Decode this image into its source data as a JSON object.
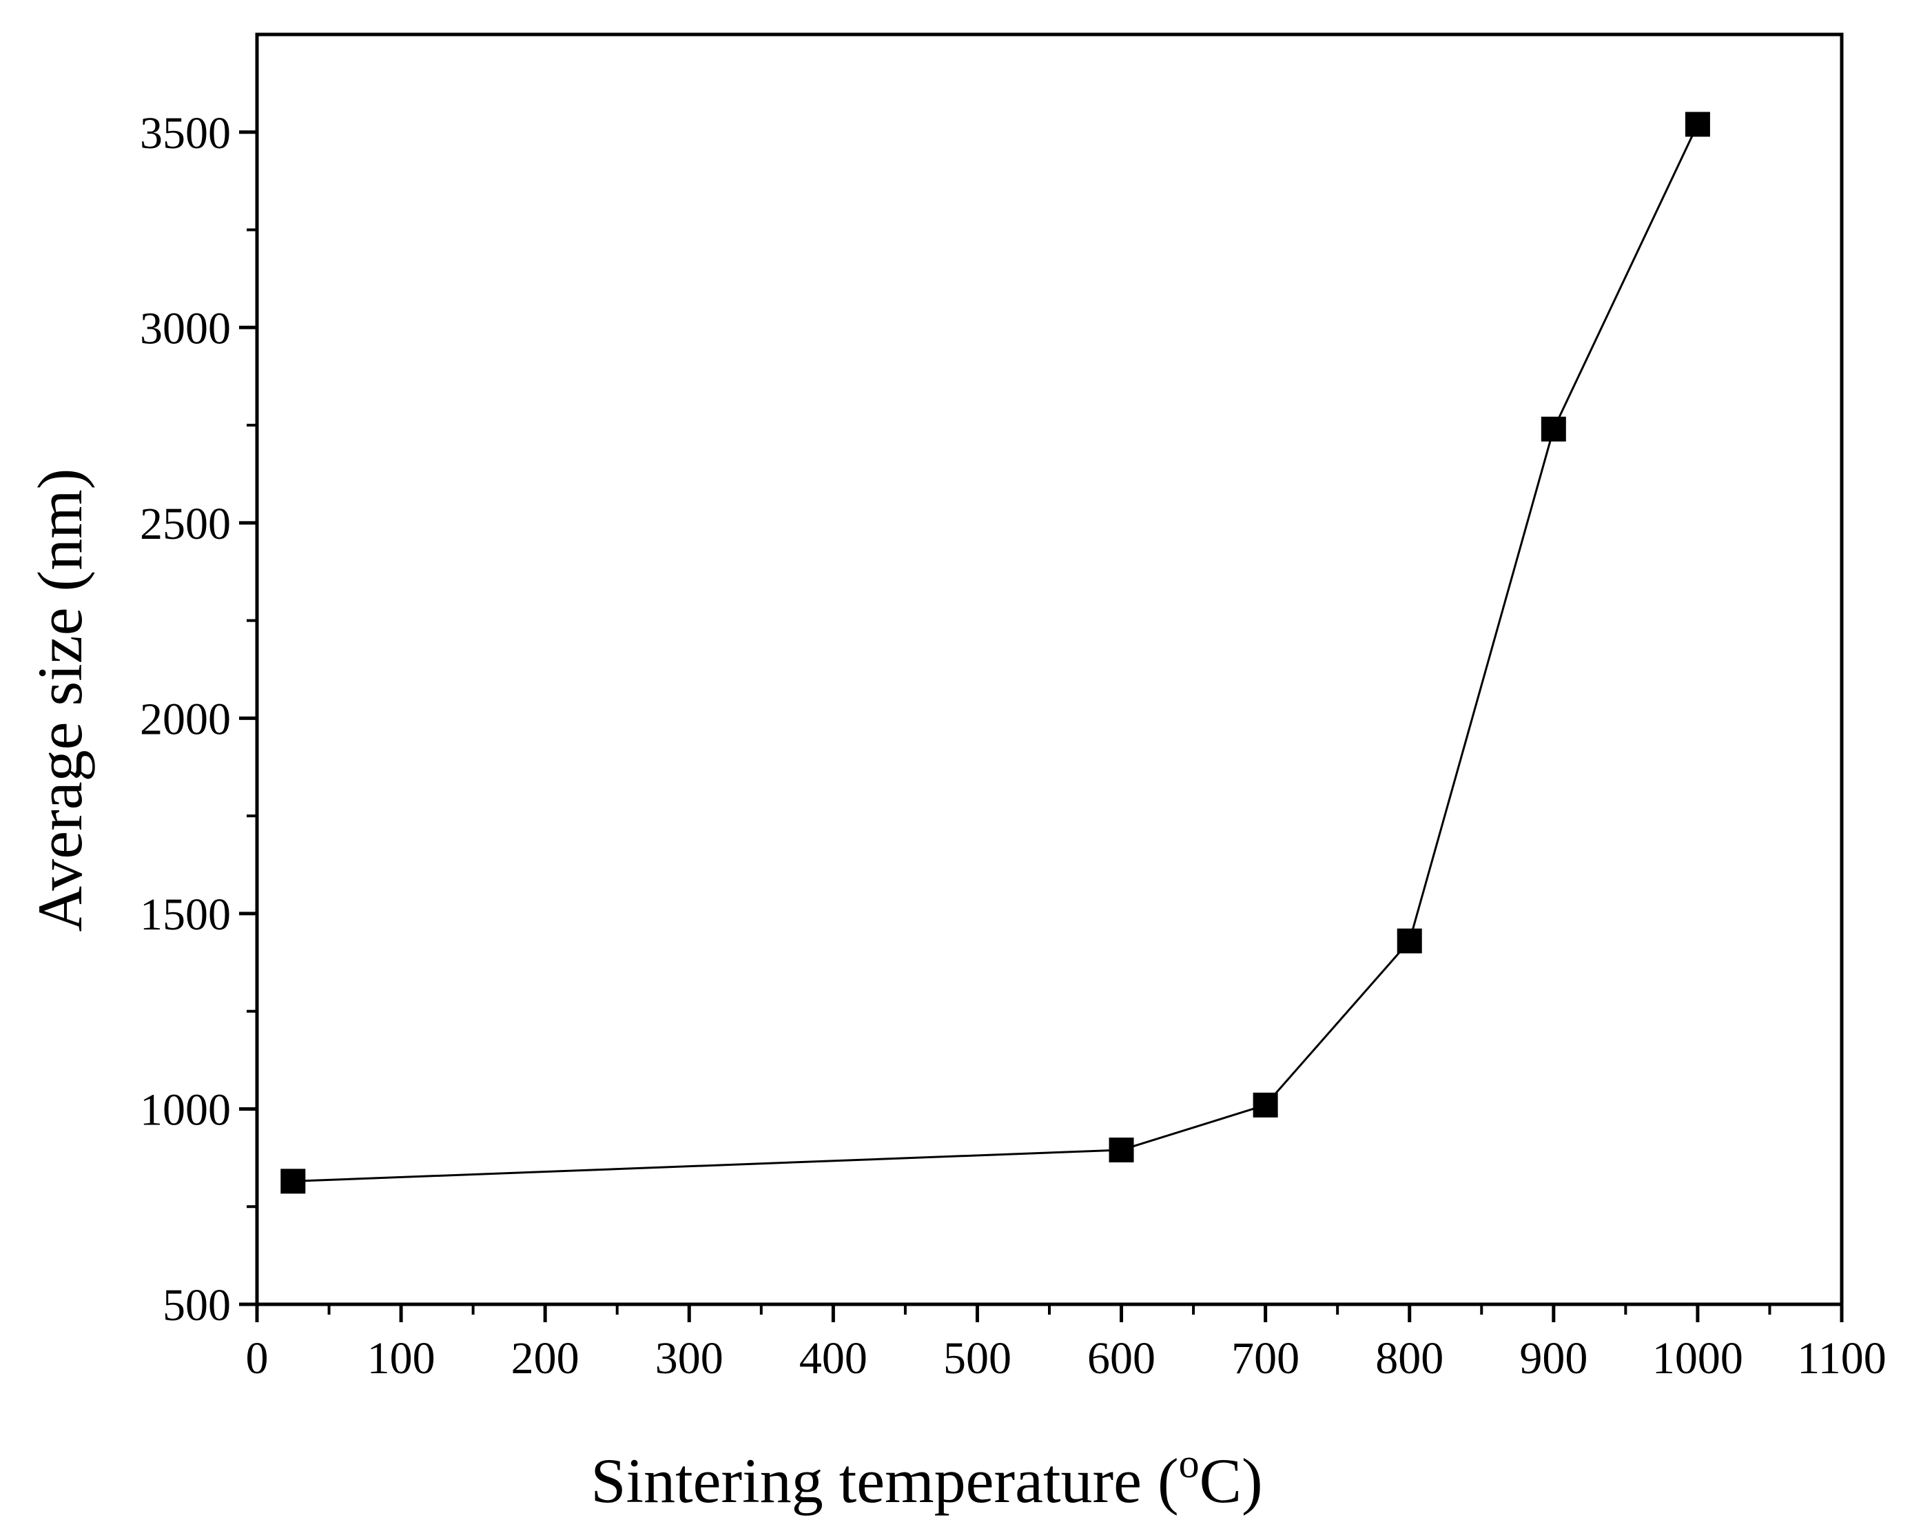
{
  "chart_data": {
    "type": "line",
    "title": "",
    "xlabel": "Sintering temperature (",
    "xlabel_sup": "o",
    "xlabel_end": "C)",
    "ylabel": "Average size (nm)",
    "xlim": [
      0,
      1100
    ],
    "ylim": [
      500,
      3750
    ],
    "xticks": [
      0,
      100,
      200,
      300,
      400,
      500,
      600,
      700,
      800,
      900,
      1000,
      1100
    ],
    "xtick_labels": [
      "0",
      "100",
      "200",
      "300",
      "400",
      "500",
      "600",
      "700",
      "800",
      "900",
      "1000",
      "1100"
    ],
    "yticks": [
      500,
      1000,
      1500,
      2000,
      2500,
      3000,
      3500
    ],
    "ytick_labels": [
      "500",
      "1000",
      "1500",
      "2000",
      "2500",
      "3000",
      "3500"
    ],
    "grid": false,
    "series": [
      {
        "name": "Average size",
        "marker": "square",
        "color": "#000000",
        "x": [
          25,
          600,
          700,
          800,
          900,
          1000
        ],
        "y": [
          815,
          895,
          1010,
          1430,
          2740,
          3520
        ]
      }
    ]
  }
}
